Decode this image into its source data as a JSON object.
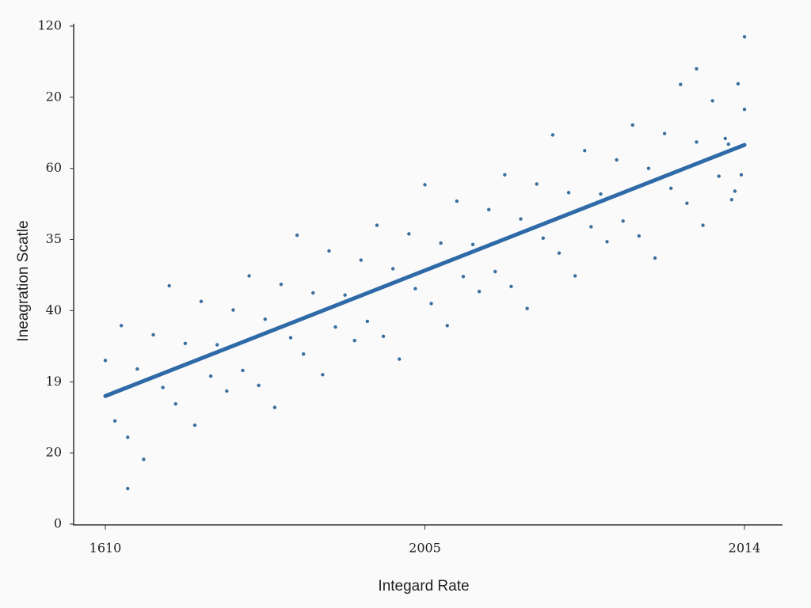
{
  "chart_data": {
    "type": "scatter",
    "x_label": "Integard Rate",
    "y_label": "Ineagration Scatle",
    "xlim": [
      0,
      2
    ],
    "xticks": [
      {
        "value": 0,
        "label": "1610"
      },
      {
        "value": 1,
        "label": "2005"
      },
      {
        "value": 2,
        "label": "2014"
      }
    ],
    "ylim": [
      0,
      7
    ],
    "yticks": [
      0,
      {
        "value": 1,
        "label": "20"
      },
      {
        "value": 2,
        "label": "19"
      },
      {
        "value": 3,
        "label": "40"
      },
      {
        "value": 4,
        "label": "35"
      },
      {
        "value": 5,
        "label": "60"
      },
      {
        "value": 6,
        "label": "20"
      },
      {
        "value": 7,
        "label": "120"
      }
    ],
    "points": {
      "color": "#3a6f9e",
      "x": [
        0,
        0.03,
        0.05,
        0.07,
        0.1,
        0.12,
        0.15,
        0.18,
        0.2,
        0.22,
        0.25,
        0.28,
        0.3,
        0.33,
        0.35,
        0.38,
        0.4,
        0.43,
        0.45,
        0.48,
        0.5,
        0.53,
        0.55,
        0.58,
        0.6,
        0.62,
        0.65,
        0.68,
        0.7,
        0.72,
        0.75,
        0.78,
        0.8,
        0.82,
        0.85,
        0.87,
        0.9,
        0.92,
        0.95,
        0.97,
        1.0,
        1.02,
        1.05,
        1.07,
        1.1,
        1.12,
        1.15,
        1.17,
        1.2,
        1.22,
        1.25,
        1.27,
        1.3,
        1.32,
        1.35,
        1.37,
        1.4,
        1.42,
        1.45,
        1.47,
        1.5,
        1.52,
        1.55,
        1.57,
        1.6,
        1.62,
        1.65,
        1.67,
        1.7,
        1.72,
        1.75,
        1.77,
        1.8,
        1.82,
        1.85,
        1.87,
        1.9,
        1.92,
        1.95,
        1.97,
        2.0,
        1.99,
        1.98,
        1.96,
        1.94,
        2.0,
        1.85,
        0.07
      ],
      "y": [
        2.3,
        1.45,
        2.79,
        1.22,
        2.18,
        0.91,
        2.66,
        1.92,
        3.35,
        1.69,
        2.54,
        1.39,
        3.13,
        2.08,
        2.52,
        1.87,
        3.01,
        2.16,
        3.49,
        1.95,
        2.88,
        1.64,
        3.37,
        2.62,
        4.06,
        2.39,
        3.25,
        2.1,
        3.84,
        2.77,
        3.22,
        2.58,
        3.71,
        2.85,
        4.2,
        2.64,
        3.59,
        2.32,
        4.08,
        3.31,
        4.77,
        3.1,
        3.95,
        2.79,
        4.54,
        3.48,
        3.93,
        3.27,
        4.42,
        3.55,
        4.91,
        3.34,
        4.29,
        3.03,
        4.78,
        4.02,
        5.47,
        3.81,
        4.66,
        3.49,
        5.25,
        4.18,
        4.64,
        3.97,
        5.12,
        4.26,
        5.61,
        4.05,
        5.0,
        3.74,
        5.49,
        4.72,
        6.18,
        4.51,
        5.37,
        4.2,
        5.95,
        4.89,
        5.34,
        4.68,
        5.83,
        4.91,
        6.19,
        4.56,
        5.42,
        6.85,
        6.4,
        0.5
      ]
    },
    "trend": {
      "color": "#2f6aa8",
      "x": [
        0,
        2
      ],
      "y": [
        1.8,
        5.33
      ]
    }
  }
}
